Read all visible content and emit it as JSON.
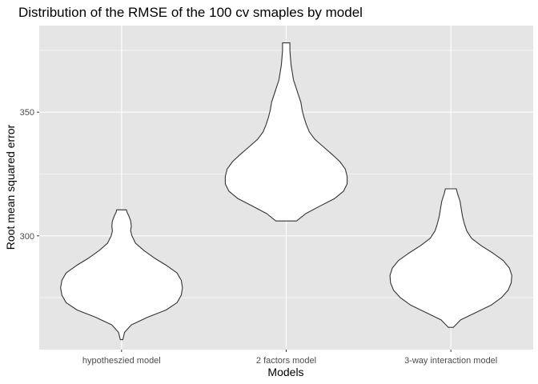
{
  "chart_data": {
    "type": "violin",
    "title": "Distribution of the RMSE of the 100 cv smaples by model",
    "xlabel": "Models",
    "ylabel": "Root mean squared error",
    "ylim": [
      254,
      385
    ],
    "y_ticks": [
      300,
      350
    ],
    "y_minor_ticks": [
      275,
      325,
      375
    ],
    "grid": true,
    "colors": {
      "panel": "#e5e5e5",
      "grid": "#ffffff",
      "violin_fill": "#ffffff",
      "violin_stroke": "#333333"
    },
    "categories": [
      "hypotheszied model",
      "2 factors model",
      "3-way interaction model"
    ],
    "series": [
      {
        "category": "hypotheszied model",
        "y_min": 258,
        "y_max": 310.5,
        "density_profile": [
          [
            258,
            0.02
          ],
          [
            261,
            0.05
          ],
          [
            264,
            0.16
          ],
          [
            267,
            0.42
          ],
          [
            270,
            0.73
          ],
          [
            273,
            0.91
          ],
          [
            276,
            0.98
          ],
          [
            279,
            1.0
          ],
          [
            282,
            0.98
          ],
          [
            285,
            0.91
          ],
          [
            288,
            0.74
          ],
          [
            291,
            0.54
          ],
          [
            294,
            0.37
          ],
          [
            297,
            0.23
          ],
          [
            300,
            0.17
          ],
          [
            302,
            0.15
          ],
          [
            304,
            0.16
          ],
          [
            306,
            0.15
          ],
          [
            308,
            0.12
          ],
          [
            309.5,
            0.09
          ],
          [
            310.5,
            0.08
          ]
        ]
      },
      {
        "category": "2 factors model",
        "y_min": 306,
        "y_max": 378,
        "density_profile": [
          [
            306,
            0.17
          ],
          [
            309,
            0.32
          ],
          [
            312,
            0.55
          ],
          [
            315,
            0.79
          ],
          [
            318,
            0.94
          ],
          [
            321,
            1.0
          ],
          [
            324,
            1.0
          ],
          [
            327,
            0.97
          ],
          [
            330,
            0.88
          ],
          [
            333,
            0.75
          ],
          [
            336,
            0.61
          ],
          [
            339,
            0.47
          ],
          [
            342,
            0.38
          ],
          [
            345,
            0.33
          ],
          [
            348,
            0.29
          ],
          [
            351,
            0.26
          ],
          [
            354,
            0.24
          ],
          [
            357,
            0.2
          ],
          [
            360,
            0.16
          ],
          [
            363,
            0.12
          ],
          [
            366,
            0.1
          ],
          [
            369,
            0.08
          ],
          [
            372,
            0.07
          ],
          [
            375,
            0.06
          ],
          [
            378,
            0.06
          ]
        ]
      },
      {
        "category": "3-way interaction model",
        "y_min": 263,
        "y_max": 319,
        "density_profile": [
          [
            263,
            0.04
          ],
          [
            266,
            0.16
          ],
          [
            269,
            0.41
          ],
          [
            272,
            0.66
          ],
          [
            275,
            0.83
          ],
          [
            278,
            0.94
          ],
          [
            281,
            0.99
          ],
          [
            284,
            1.0
          ],
          [
            287,
            0.96
          ],
          [
            290,
            0.86
          ],
          [
            293,
            0.69
          ],
          [
            296,
            0.5
          ],
          [
            299,
            0.34
          ],
          [
            302,
            0.26
          ],
          [
            305,
            0.22
          ],
          [
            308,
            0.19
          ],
          [
            311,
            0.17
          ],
          [
            314,
            0.15
          ],
          [
            317,
            0.11
          ],
          [
            319,
            0.09
          ]
        ]
      }
    ]
  }
}
